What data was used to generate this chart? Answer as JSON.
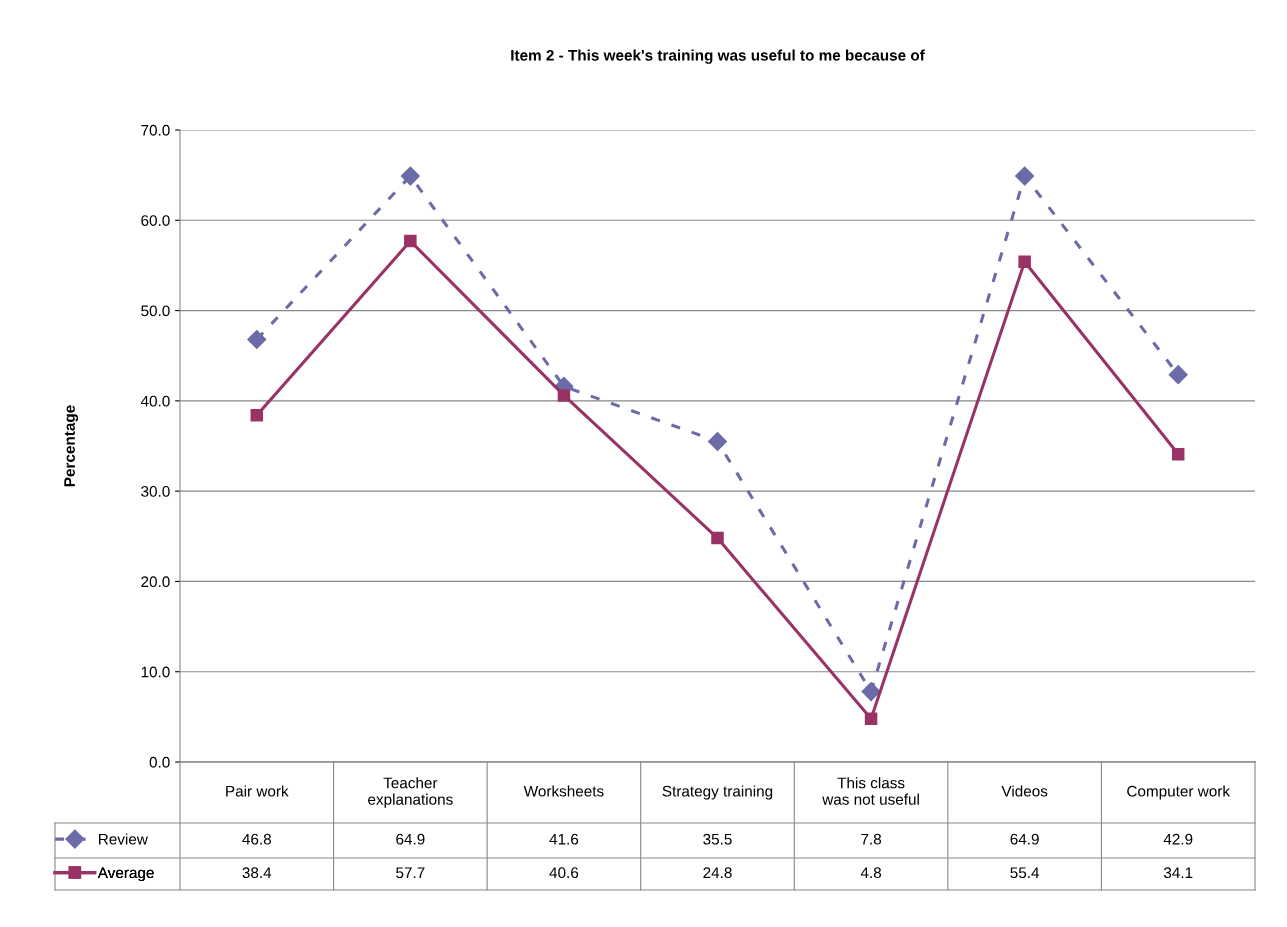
{
  "chart_data": {
    "type": "line",
    "title": "Item 2 - This week's training was useful to me because of",
    "ylabel": "Percentage",
    "categories": [
      "Pair work",
      "Teacher explanations",
      "Worksheets",
      "Strategy training",
      "This class was not useful",
      "Videos",
      "Computer work"
    ],
    "series": [
      {
        "name": "Review",
        "color": "#6b6ba8",
        "marker": "diamond",
        "line_style": "dashed",
        "values": [
          46.8,
          64.9,
          41.6,
          35.5,
          7.8,
          64.9,
          42.9
        ]
      },
      {
        "name": "Average",
        "color": "#993366",
        "marker": "square",
        "line_style": "solid",
        "values": [
          38.4,
          57.7,
          40.6,
          24.8,
          4.8,
          55.4,
          34.1
        ]
      }
    ],
    "ylim": [
      0,
      70
    ],
    "yticks": [
      {
        "value": 0,
        "label": "0.0"
      },
      {
        "value": 10,
        "label": "10.0"
      },
      {
        "value": 20,
        "label": "20.0"
      },
      {
        "value": 30,
        "label": "30.0"
      },
      {
        "value": 40,
        "label": "40.0"
      },
      {
        "value": 50,
        "label": "50.0"
      },
      {
        "value": 60,
        "label": "60.0"
      },
      {
        "value": 70,
        "label": "70.0"
      }
    ],
    "grid": "y",
    "legend": "bottom left",
    "data_labels": true
  }
}
